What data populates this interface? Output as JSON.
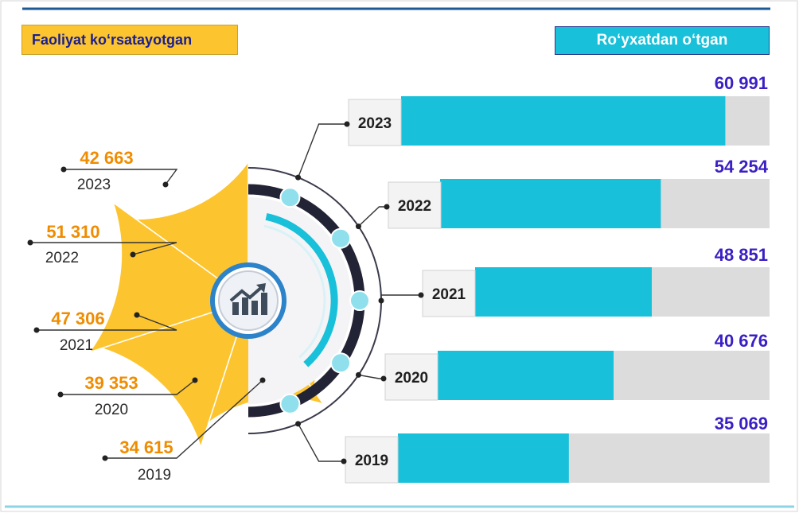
{
  "legend": {
    "active_label": "Faoliyat ko‘rsatayotgan",
    "registered_label": "Ro‘yxatdan o‘tgan"
  },
  "colors": {
    "active": "#fcc42f",
    "registered": "#18c0d9",
    "track": "#dcdcdc",
    "active_value_text": "#f08c00",
    "registered_value_text": "#3a1fc4",
    "ring_dark": "#232336",
    "top_rule": "#1d5a94"
  },
  "icon": "growth-chart-icon",
  "chart_data": {
    "type": "bar",
    "categories": [
      "2023",
      "2022",
      "2021",
      "2020",
      "2019"
    ],
    "series": [
      {
        "name": "Faoliyat ko‘rsatayotgan",
        "values": [
          42663,
          51310,
          47306,
          39353,
          34615
        ],
        "labels": [
          "42 663",
          "51 310",
          "47 306",
          "39 353",
          "34 615"
        ]
      },
      {
        "name": "Ro‘yxatdan o‘tgan",
        "values": [
          60991,
          54254,
          48851,
          40676,
          35069
        ],
        "labels": [
          "60 991",
          "54 254",
          "48 851",
          "40 676",
          "35 069"
        ]
      }
    ],
    "registered_fill_fraction": [
      0.88,
      0.67,
      0.6,
      0.53,
      0.46
    ]
  }
}
